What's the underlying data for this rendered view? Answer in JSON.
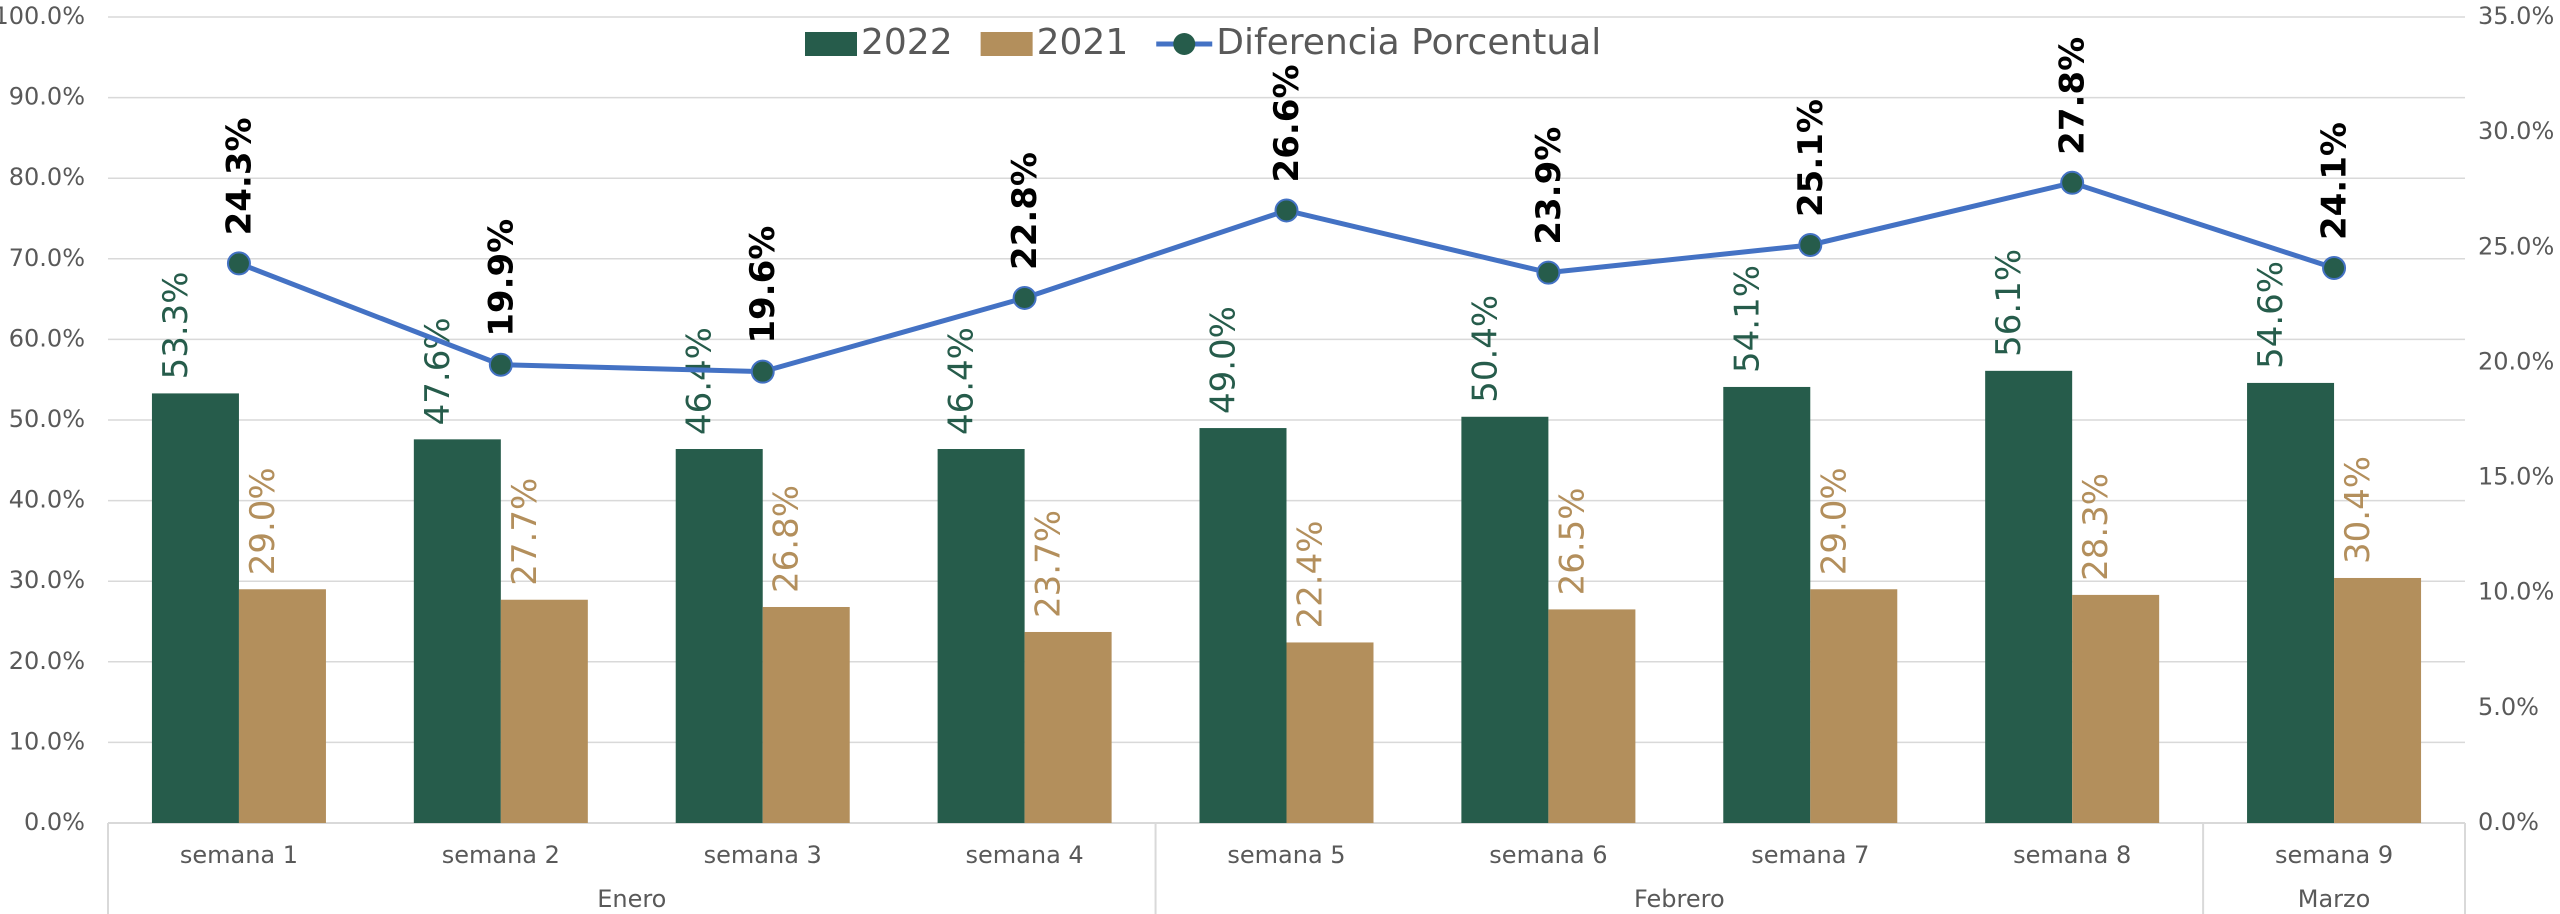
{
  "chart_data": {
    "type": "bar-line",
    "groups": [
      {
        "name": "Enero",
        "categories": [
          "semana  1",
          "semana 2",
          "semana 3",
          "semana  4"
        ]
      },
      {
        "name": "Febrero",
        "categories": [
          "semana  5",
          "semana  6",
          "semana  7",
          "semana  8"
        ]
      },
      {
        "name": "Marzo",
        "categories": [
          "semana  9"
        ]
      }
    ],
    "series": [
      {
        "name": "2022",
        "type": "bar",
        "color": "#265c4b",
        "values": [
          53.3,
          47.6,
          46.4,
          46.4,
          49.0,
          50.4,
          54.1,
          56.1,
          54.6
        ],
        "value_labels": [
          "53.3%",
          "47.6%",
          "46.4%",
          "46.4%",
          "49.0%",
          "50.4%",
          "54.1%",
          "56.1%",
          "54.6%"
        ]
      },
      {
        "name": "2021",
        "type": "bar",
        "color": "#b38f5c",
        "values": [
          29.0,
          27.7,
          26.8,
          23.7,
          22.4,
          26.5,
          29.0,
          28.3,
          30.4
        ],
        "value_labels": [
          "29.0%",
          "27.7%",
          "26.8%",
          "23.7%",
          "22.4%",
          "26.5%",
          "29.0%",
          "28.3%",
          "30.4%"
        ]
      },
      {
        "name": "Diferencia Porcentual",
        "type": "line",
        "axis": "y2",
        "color": "#4472c4",
        "marker_color": "#265c4b",
        "values": [
          24.3,
          19.9,
          19.6,
          22.8,
          26.6,
          23.9,
          25.1,
          27.8,
          24.1
        ],
        "value_labels": [
          "24.3%",
          "19.9%",
          "19.6%",
          "22.8%",
          "26.6%",
          "23.9%",
          "25.1%",
          "27.8%",
          "24.1%"
        ]
      }
    ],
    "ylim": [
      0,
      100
    ],
    "yticks": [
      {
        "value": 0,
        "label": "0.0%"
      },
      {
        "value": 10,
        "label": "10.0%"
      },
      {
        "value": 20,
        "label": "20.0%"
      },
      {
        "value": 30,
        "label": "30.0%"
      },
      {
        "value": 40,
        "label": "40.0%"
      },
      {
        "value": 50,
        "label": "50.0%"
      },
      {
        "value": 60,
        "label": "60.0%"
      },
      {
        "value": 70,
        "label": "70.0%"
      },
      {
        "value": 80,
        "label": "80.0%"
      },
      {
        "value": 90,
        "label": "90.0%"
      },
      {
        "value": 100,
        "label": "100.0%"
      }
    ],
    "y2lim": [
      0,
      35
    ],
    "y2ticks": [
      {
        "value": 0,
        "label": "0.0%"
      },
      {
        "value": 5,
        "label": "5.0%"
      },
      {
        "value": 10,
        "label": "10.0%"
      },
      {
        "value": 15,
        "label": "15.0%"
      },
      {
        "value": 20,
        "label": "20.0%"
      },
      {
        "value": 25,
        "label": "25.0%"
      },
      {
        "value": 30,
        "label": "30.0%"
      },
      {
        "value": 35,
        "label": "35.0%"
      }
    ],
    "grid": true,
    "legend": "top"
  }
}
